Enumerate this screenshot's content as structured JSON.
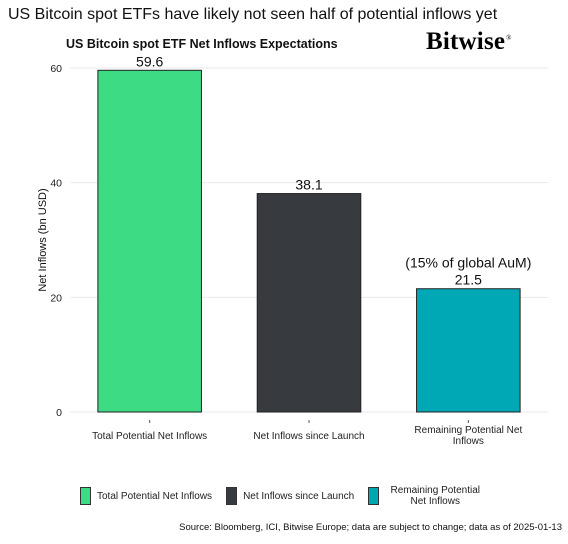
{
  "headline": "US Bitcoin spot ETFs have likely not seen half of potential inflows yet",
  "logo_text": "Bitwise",
  "logo_mark": "®",
  "source": "Source: Bloomberg, ICI, Bitwise Europe; data are subject to change; data as of 2025-01-13",
  "chart_data": {
    "type": "bar",
    "title": "US Bitcoin spot ETF Net Inflows Expectations",
    "xlabel": "",
    "ylabel": "Net Inflows (bn USD)",
    "ylim": [
      0,
      60
    ],
    "yticks": [
      0,
      20,
      40,
      60
    ],
    "grid": true,
    "legend_position": "bottom",
    "categories": [
      "Total Potential Net Inflows",
      "Net Inflows since Launch",
      "Remaining Potential Net Inflows"
    ],
    "values": [
      59.6,
      38.1,
      21.5
    ],
    "value_labels": [
      "59.6",
      "38.1",
      "21.5"
    ],
    "colors": [
      "#3ddc84",
      "#373b3f",
      "#00a7b5"
    ],
    "annotations": [
      {
        "category": "Remaining Potential Net Inflows",
        "text": "(15% of global AuM)"
      }
    ]
  }
}
